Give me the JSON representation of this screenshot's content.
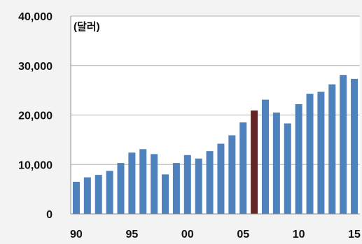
{
  "chart_data": {
    "type": "bar",
    "unit_label": "(달러)",
    "x": [
      1990,
      1991,
      1992,
      1993,
      1994,
      1995,
      1996,
      1997,
      1998,
      1999,
      2000,
      2001,
      2002,
      2003,
      2004,
      2005,
      2006,
      2007,
      2008,
      2009,
      2010,
      2011,
      2012,
      2013,
      2014,
      2015
    ],
    "values": [
      6500,
      7400,
      7900,
      8700,
      10300,
      12400,
      13100,
      12100,
      8000,
      10300,
      11900,
      11200,
      12700,
      14200,
      15900,
      18500,
      20900,
      23100,
      20500,
      18300,
      22200,
      24300,
      24700,
      26200,
      28100,
      27300
    ],
    "highlight_index": 16,
    "x_tick_labels": [
      {
        "x": 1990,
        "label": "90"
      },
      {
        "x": 1995,
        "label": "95"
      },
      {
        "x": 2000,
        "label": "00"
      },
      {
        "x": 2005,
        "label": "05"
      },
      {
        "x": 2010,
        "label": "10"
      },
      {
        "x": 2015,
        "label": "15"
      }
    ],
    "y_tick_labels": [
      {
        "value": 0,
        "label": "0"
      },
      {
        "value": 10000,
        "label": "10,000"
      },
      {
        "value": 20000,
        "label": "20,000"
      },
      {
        "value": 30000,
        "label": "30,000"
      },
      {
        "value": 40000,
        "label": "40,000"
      }
    ],
    "ylim": [
      0,
      40000
    ],
    "grid": true,
    "colors": {
      "bar": "#4f81bd",
      "highlight": "#632523",
      "grid": "#b0b0b0",
      "plot_background": "#ffffff"
    }
  }
}
